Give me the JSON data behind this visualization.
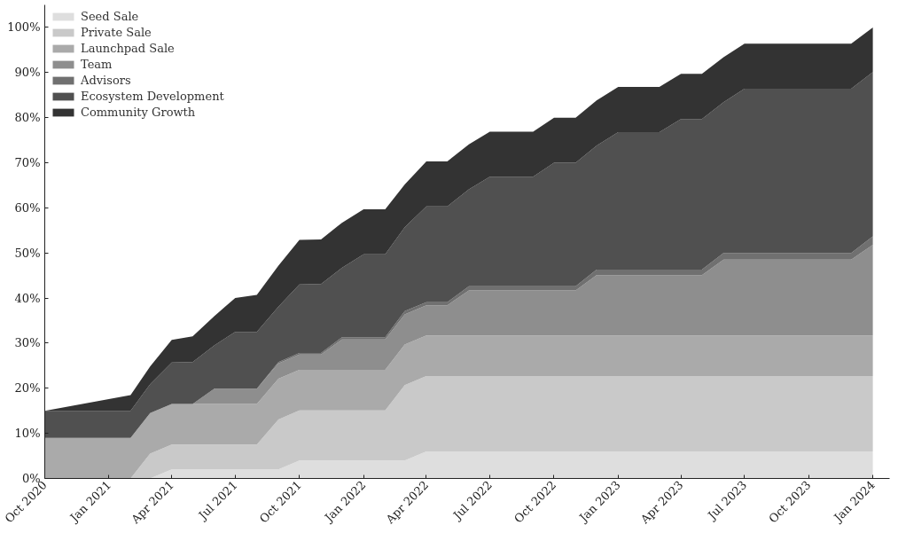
{
  "chart_data": {
    "type": "area",
    "stacked": true,
    "x": [
      "2020-10",
      "2021-02",
      "2021-03",
      "2021-04",
      "2021-05",
      "2021-06",
      "2021-07",
      "2021-08",
      "2021-09",
      "2021-10",
      "2021-11",
      "2021-12",
      "2022-01",
      "2022-02",
      "2022-03",
      "2022-04",
      "2022-05",
      "2022-06",
      "2022-07",
      "2022-08",
      "2022-09",
      "2022-10",
      "2022-11",
      "2022-12",
      "2023-01",
      "2023-02",
      "2023-03",
      "2023-04",
      "2023-05",
      "2023-06",
      "2023-07",
      "2023-08",
      "2023-09",
      "2023-10",
      "2023-11",
      "2023-12",
      "2024-01"
    ],
    "series": [
      {
        "name": "Seed Sale",
        "color": "#dedede",
        "values": [
          0,
          0,
          0,
          2,
          2,
          2,
          2,
          2,
          2,
          4,
          4,
          4,
          4,
          4,
          4,
          6,
          6,
          6,
          6,
          6,
          6,
          6,
          6,
          6,
          6,
          6,
          6,
          6,
          6,
          6,
          6,
          6,
          6,
          6,
          6,
          6,
          6
        ]
      },
      {
        "name": "Private Sale",
        "color": "#c9c9c9",
        "values": [
          0,
          0,
          5.5,
          5.5,
          5.5,
          5.5,
          5.5,
          5.5,
          11.1,
          11.1,
          11.1,
          11.1,
          11.1,
          11.1,
          16.7,
          16.7,
          16.7,
          16.7,
          16.7,
          16.7,
          16.7,
          16.7,
          16.7,
          16.7,
          16.7,
          16.7,
          16.7,
          16.7,
          16.7,
          16.7,
          16.7,
          16.7,
          16.7,
          16.7,
          16.7,
          16.7,
          16.7
        ]
      },
      {
        "name": "Launchpad Sale",
        "color": "#aaaaaa",
        "values": [
          9,
          9,
          9,
          9,
          9,
          9,
          9,
          9,
          9,
          9,
          9,
          9,
          9,
          9,
          9,
          9,
          9,
          9,
          9,
          9,
          9,
          9,
          9,
          9,
          9,
          9,
          9,
          9,
          9,
          9,
          9,
          9,
          9,
          9,
          9,
          9,
          9
        ]
      },
      {
        "name": "Team",
        "color": "#8e8e8e",
        "values": [
          0,
          0,
          0,
          0,
          0,
          3.4,
          3.4,
          3.4,
          3.4,
          3.4,
          3.4,
          6.7,
          6.7,
          6.7,
          6.7,
          6.7,
          6.7,
          10,
          10,
          10,
          10,
          10,
          10,
          13.4,
          13.4,
          13.4,
          13.4,
          13.4,
          13.4,
          16.8,
          16.8,
          16.8,
          16.8,
          16.8,
          16.8,
          16.8,
          20.1
        ]
      },
      {
        "name": "Advisors",
        "color": "#707070",
        "values": [
          0,
          0,
          0,
          0,
          0,
          0,
          0,
          0,
          0.3,
          0.3,
          0.3,
          0.5,
          0.5,
          0.5,
          0.7,
          0.7,
          0.7,
          0.9,
          0.9,
          0.9,
          0.9,
          0.9,
          0.9,
          1.2,
          1.2,
          1.2,
          1.2,
          1.2,
          1.2,
          1.5,
          1.5,
          1.5,
          1.5,
          1.5,
          1.5,
          1.5,
          1.9
        ]
      },
      {
        "name": "Ecosystem Development",
        "color": "#505050",
        "values": [
          6.0,
          6.0,
          6.4,
          9.2,
          9.3,
          9.6,
          12.6,
          12.6,
          12.3,
          15.2,
          15.3,
          15.4,
          18.4,
          18.4,
          18.6,
          21.2,
          21.2,
          21.5,
          24.3,
          24.3,
          24.3,
          27.4,
          27.4,
          27.5,
          30.5,
          30.5,
          30.5,
          33.4,
          33.4,
          33.4,
          36.4,
          36.4,
          36.4,
          36.4,
          36.4,
          36.4,
          36.4
        ]
      },
      {
        "name": "Community Growth",
        "color": "#333333",
        "values": [
          0,
          3.5,
          3.9,
          5.0,
          5.7,
          6.5,
          7.5,
          8.2,
          9.1,
          9.9,
          9.9,
          10,
          10,
          10,
          9.5,
          10,
          10,
          10,
          10,
          10,
          10,
          10,
          10,
          10,
          10,
          10,
          10,
          10,
          10,
          10,
          10,
          10,
          10,
          10,
          10,
          10,
          9.9
        ]
      }
    ],
    "xlim": [
      "2020-10-01",
      "2024-01-25"
    ],
    "xticks": [
      {
        "value": "2020-10",
        "label": "Oct 2020"
      },
      {
        "value": "2021-01",
        "label": "Jan 2021"
      },
      {
        "value": "2021-04",
        "label": "Apr 2021"
      },
      {
        "value": "2021-07",
        "label": "Jul 2021"
      },
      {
        "value": "2021-10",
        "label": "Oct 2021"
      },
      {
        "value": "2022-01",
        "label": "Jan 2022"
      },
      {
        "value": "2022-04",
        "label": "Apr 2022"
      },
      {
        "value": "2022-07",
        "label": "Jul 2022"
      },
      {
        "value": "2022-10",
        "label": "Oct 2022"
      },
      {
        "value": "2023-01",
        "label": "Jan 2023"
      },
      {
        "value": "2023-04",
        "label": "Apr 2023"
      },
      {
        "value": "2023-07",
        "label": "Jul 2023"
      },
      {
        "value": "2023-10",
        "label": "Oct 2023"
      },
      {
        "value": "2024-01",
        "label": "Jan 2024"
      }
    ],
    "ylim": [
      0,
      105
    ],
    "yticks": [
      {
        "value": 0,
        "label": "0%"
      },
      {
        "value": 10,
        "label": "10%"
      },
      {
        "value": 20,
        "label": "20%"
      },
      {
        "value": 30,
        "label": "30%"
      },
      {
        "value": 40,
        "label": "40%"
      },
      {
        "value": 50,
        "label": "50%"
      },
      {
        "value": 60,
        "label": "60%"
      },
      {
        "value": 70,
        "label": "70%"
      },
      {
        "value": 80,
        "label": "80%"
      },
      {
        "value": 90,
        "label": "90%"
      },
      {
        "value": 100,
        "label": "100%"
      }
    ],
    "grid": false,
    "legend": "top left"
  }
}
